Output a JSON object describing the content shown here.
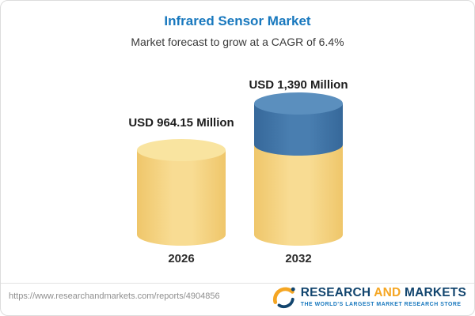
{
  "chart_data": {
    "type": "bar",
    "title": "Infrared Sensor Market",
    "subtitle": "Market forecast to grow at a CAGR of 6.4%",
    "categories": [
      "2026",
      "2032"
    ],
    "values": [
      964.15,
      1390
    ],
    "value_labels": [
      "USD 964.15 Million",
      "USD 1,390 Million"
    ],
    "unit": "USD Million",
    "cagr": "6.4%",
    "legend_position": "none",
    "colors": {
      "bar_2026": "#F5D17C",
      "bar_2032_base": "#F5D17C",
      "bar_2032_growth": "#3E76A8",
      "title": "#1878BE"
    }
  },
  "footer": {
    "url": "https://www.researchandmarkets.com/reports/4904856",
    "logo": {
      "research": "RESEARCH",
      "and": "AND",
      "markets": "MARKETS",
      "tagline": "THE WORLD'S LARGEST MARKET RESEARCH STORE"
    }
  }
}
